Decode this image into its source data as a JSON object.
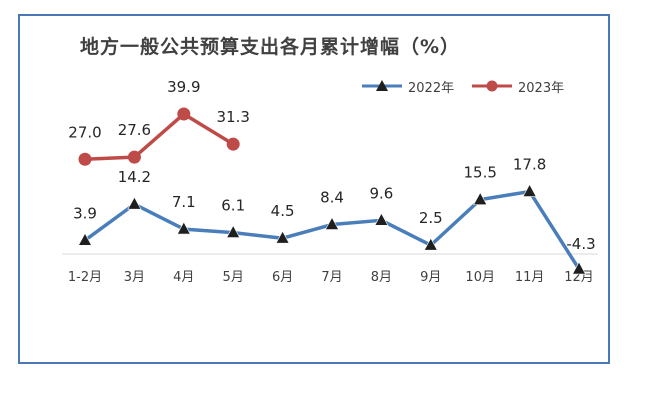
{
  "chart_data": {
    "type": "line",
    "title": "地方一般公共预算支出各月累计增幅（%）",
    "categories": [
      "1-2月",
      "3月",
      "4月",
      "5月",
      "6月",
      "7月",
      "8月",
      "9月",
      "10月",
      "11月",
      "12月"
    ],
    "series": [
      {
        "name": "2022年",
        "color": "#4a7ebb",
        "marker": "triangle",
        "values": [
          3.9,
          14.2,
          7.1,
          6.1,
          4.5,
          8.4,
          9.6,
          2.5,
          15.5,
          17.8,
          -4.3
        ],
        "labels": [
          "3.9",
          "14.2",
          "7.1",
          "6.1",
          "4.5",
          "8.4",
          "9.6",
          "2.5",
          "15.5",
          "17.8",
          "-4.3"
        ]
      },
      {
        "name": "2023年",
        "color": "#be4b48",
        "marker": "circle",
        "values": [
          27.0,
          27.6,
          39.9,
          31.3,
          null,
          null,
          null,
          null,
          null,
          null,
          null
        ],
        "labels": [
          "27.0",
          "27.6",
          "39.9",
          "31.3",
          null,
          null,
          null,
          null,
          null,
          null,
          null
        ]
      }
    ],
    "xlabel": "",
    "ylabel": "",
    "ylim": [
      -5,
      42
    ],
    "grid": false,
    "legend_position": "top-right"
  }
}
